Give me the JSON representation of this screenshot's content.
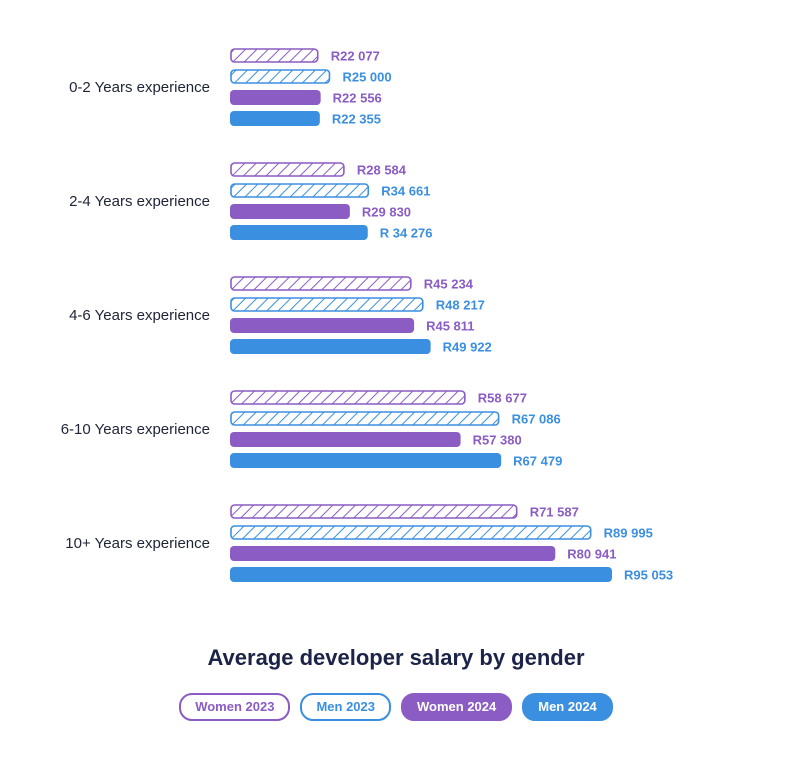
{
  "chart_data": {
    "type": "bar",
    "orientation": "horizontal",
    "title": "Average developer salary by gender",
    "categories": [
      "0-2 Years experience",
      "2-4 Years experience",
      "4-6 Years experience",
      "6-10 Years experience",
      "10+ Years experience"
    ],
    "series": [
      {
        "name": "Women 2023",
        "values": [
          22077,
          28584,
          45234,
          58677,
          71587
        ],
        "labels": [
          "R22 077",
          "R28 584",
          "R45 234",
          "R58 677",
          "R71 587"
        ],
        "color": "#8a5cc4",
        "pattern": "hatched"
      },
      {
        "name": "Men 2023",
        "values": [
          25000,
          34661,
          48217,
          67086,
          89995
        ],
        "labels": [
          "R25 000",
          "R34 661",
          "R48 217",
          "R67 086",
          "R89 995"
        ],
        "color": "#3b8fe0",
        "pattern": "hatched"
      },
      {
        "name": "Women 2024",
        "values": [
          22556,
          29830,
          45811,
          57380,
          80941
        ],
        "labels": [
          "R22 556",
          "R29 830",
          "R45 811",
          "R57 380",
          "R80 941"
        ],
        "color": "#8a5cc4",
        "pattern": "solid"
      },
      {
        "name": "Men 2024",
        "values": [
          22355,
          34276,
          49922,
          67479,
          95053
        ],
        "labels": [
          "R22 355",
          "R 34 276",
          "R49 922",
          "R67 479",
          "R95 053"
        ],
        "color": "#3b8fe0",
        "pattern": "solid"
      }
    ],
    "xlim": [
      0,
      95053
    ],
    "grid": false,
    "legend_position": "bottom"
  }
}
